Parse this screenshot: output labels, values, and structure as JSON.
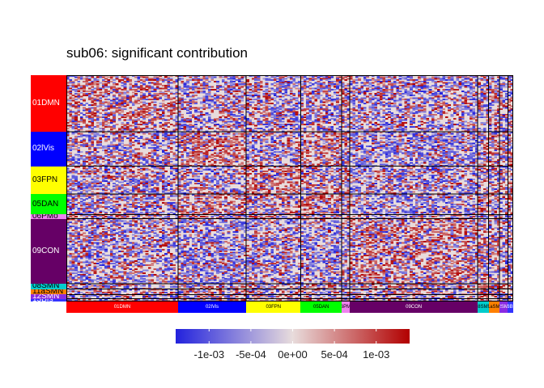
{
  "chart_data": {
    "type": "heatmap",
    "title": "sub06: significant contribution",
    "xlabel": "",
    "ylabel": "",
    "networks": [
      {
        "name": "01DMN",
        "size": 41,
        "color": "#FF0000",
        "label_color": "#ffffff"
      },
      {
        "name": "02lVis",
        "size": 25,
        "color": "#0000FF",
        "label_color": "#ffffff"
      },
      {
        "name": "03FPN",
        "size": 20,
        "color": "#FFFF00",
        "label_color": "#000000"
      },
      {
        "name": "05DAN",
        "size": 15,
        "color": "#00FF00",
        "label_color": "#000000"
      },
      {
        "name": "06PMo",
        "size": 3,
        "color": "#EE82EE",
        "label_color": "#000000"
      },
      {
        "name": "09CON",
        "size": 47,
        "color": "#660066",
        "label_color": "#ffffff"
      },
      {
        "name": "08SMN",
        "size": 4,
        "color": "#00CCCC",
        "label_color": "#000000"
      },
      {
        "name": "11aSMN",
        "size": 4,
        "color": "#FF8000",
        "label_color": "#000000"
      },
      {
        "name": "12SMN",
        "size": 3,
        "color": "#8A2BE2",
        "label_color": "#ffffff"
      },
      {
        "name": "13Bfs",
        "size": 2,
        "color": "#3333FF",
        "label_color": "#ffffff"
      }
    ],
    "x_labels": [
      "01DMN",
      "02lVis",
      "03FPN",
      "05DAN",
      "06PMo",
      "09CON",
      "08SMN",
      "11aSMN",
      "12SMN",
      "13Bfs"
    ],
    "y_labels": [
      "01DMN",
      "02lVis",
      "03FPN",
      "05DAN",
      "06PMo",
      "09CON",
      "08SMN",
      "11aSMN",
      "12SMN",
      "13Bfs"
    ],
    "block_tendency": [
      [
        0.35,
        -0.15,
        -0.2,
        -0.1,
        0.0,
        -0.2,
        -0.1,
        0.1,
        0.0,
        0.0
      ],
      [
        -0.15,
        0.6,
        -0.15,
        0.3,
        -0.1,
        -0.5,
        0.1,
        0.1,
        -0.1,
        0.0
      ],
      [
        -0.2,
        -0.15,
        0.5,
        0.2,
        0.0,
        -0.3,
        -0.1,
        0.0,
        0.0,
        0.0
      ],
      [
        -0.1,
        0.3,
        0.2,
        0.45,
        0.1,
        -0.45,
        0.0,
        0.1,
        0.0,
        0.0
      ],
      [
        0.0,
        -0.1,
        0.0,
        0.1,
        0.3,
        0.0,
        0.0,
        0.0,
        0.0,
        0.0
      ],
      [
        -0.2,
        -0.5,
        -0.3,
        -0.45,
        0.0,
        0.3,
        0.2,
        0.1,
        0.0,
        0.0
      ],
      [
        -0.1,
        0.1,
        -0.1,
        0.0,
        0.0,
        0.2,
        0.5,
        0.3,
        0.2,
        0.0
      ],
      [
        0.1,
        0.1,
        0.0,
        0.1,
        0.0,
        0.1,
        0.3,
        0.5,
        0.2,
        0.1
      ],
      [
        0.0,
        -0.1,
        0.0,
        0.0,
        0.0,
        0.0,
        0.2,
        0.2,
        0.4,
        0.1
      ],
      [
        0.0,
        0.0,
        0.0,
        0.0,
        0.0,
        0.0,
        0.0,
        0.1,
        0.1,
        0.4
      ]
    ],
    "color_scale": {
      "min": -0.0014,
      "max": 0.0014,
      "low_color": "#2222DD",
      "mid_color": "#E8DCDC",
      "high_color": "#B20000",
      "ticks": [
        -0.001,
        -0.0005,
        0.0,
        0.0005,
        0.001
      ],
      "tick_labels": [
        "-1e-03",
        "-5e-04",
        "0e+00",
        "5e-04",
        "1e-03"
      ]
    },
    "legend_placement": "bottom",
    "grid": false
  }
}
